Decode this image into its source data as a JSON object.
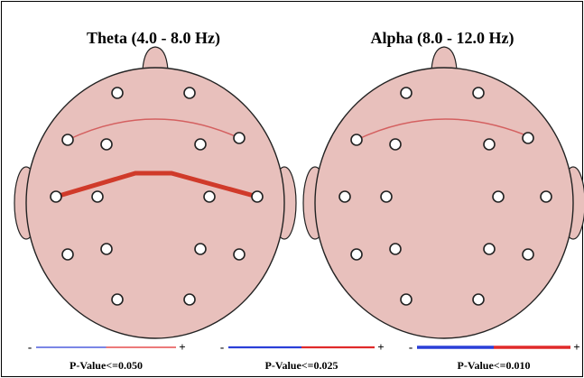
{
  "panels": [
    {
      "title": "Theta (4.0 - 8.0 Hz)"
    },
    {
      "title": "Alpha (8.0 - 12.0 Hz)"
    }
  ],
  "legend": [
    {
      "minus": "-",
      "plus": "+",
      "label": "P-Value<=0.050"
    },
    {
      "minus": "-",
      "plus": "+",
      "label": "P-Value<=0.025"
    },
    {
      "minus": "-",
      "plus": "+",
      "label": "P-Value<=0.010"
    }
  ]
}
